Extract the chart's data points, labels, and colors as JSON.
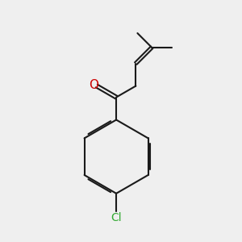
{
  "background_color": "#efefef",
  "bond_color": "#1a1a1a",
  "oxygen_color": "#cc0000",
  "chlorine_color": "#33aa33",
  "line_width": 1.5,
  "figsize": [
    3.0,
    3.0
  ],
  "dpi": 100
}
